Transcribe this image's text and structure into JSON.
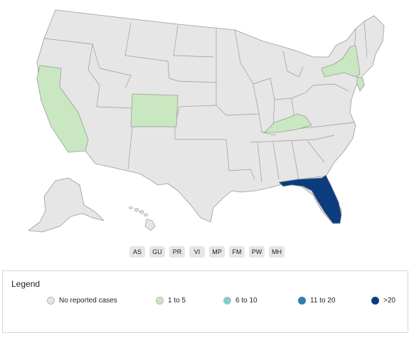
{
  "colors": {
    "none": "#e6e6e6",
    "low": "#c9e8c1",
    "mid": "#7fd1cb",
    "high": "#2e7fb0",
    "max": "#0b3d7e"
  },
  "map": {
    "states": [
      {
        "name": "California",
        "category": "low"
      },
      {
        "name": "Colorado",
        "category": "low"
      },
      {
        "name": "Kentucky",
        "category": "low"
      },
      {
        "name": "New York",
        "category": "low"
      },
      {
        "name": "New Jersey",
        "category": "low"
      },
      {
        "name": "Florida",
        "category": "max"
      }
    ]
  },
  "territories": [
    "AS",
    "GU",
    "PR",
    "VI",
    "MP",
    "FM",
    "PW",
    "MH"
  ],
  "legend": {
    "title": "Legend",
    "items": [
      {
        "label": "No reported cases",
        "color": "#e6e6e6"
      },
      {
        "label": "1 to 5",
        "color": "#c9e8c1"
      },
      {
        "label": "6 to 10",
        "color": "#7fd1cb"
      },
      {
        "label": "11 to 20",
        "color": "#2e7fb0"
      },
      {
        "label": ">20",
        "color": "#0b3d7e"
      }
    ]
  }
}
